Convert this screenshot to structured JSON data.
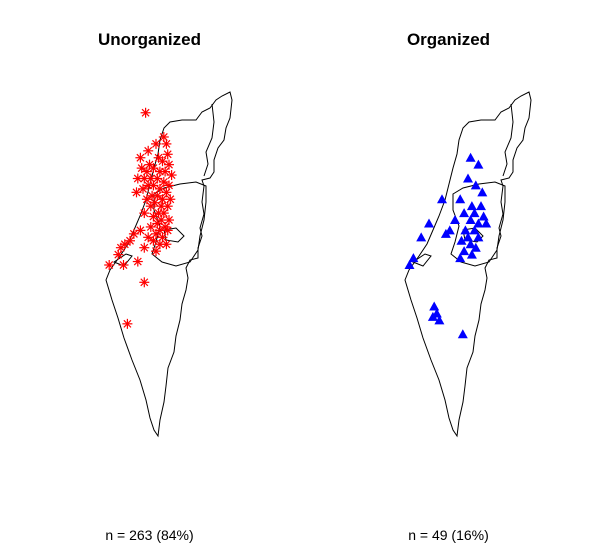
{
  "panels": [
    {
      "title": "Unorganized",
      "count_label": "n = 263 (84%)",
      "marker": "asterisk",
      "color": "#ff0000",
      "points": [
        [
          0.32,
          0.06
        ],
        [
          0.46,
          0.13
        ],
        [
          0.48,
          0.15
        ],
        [
          0.4,
          0.15
        ],
        [
          0.34,
          0.17
        ],
        [
          0.49,
          0.18
        ],
        [
          0.28,
          0.19
        ],
        [
          0.35,
          0.21
        ],
        [
          0.42,
          0.19
        ],
        [
          0.45,
          0.2
        ],
        [
          0.5,
          0.21
        ],
        [
          0.29,
          0.22
        ],
        [
          0.33,
          0.23
        ],
        [
          0.38,
          0.22
        ],
        [
          0.43,
          0.23
        ],
        [
          0.47,
          0.23
        ],
        [
          0.52,
          0.24
        ],
        [
          0.26,
          0.25
        ],
        [
          0.31,
          0.25
        ],
        [
          0.36,
          0.25
        ],
        [
          0.41,
          0.25
        ],
        [
          0.46,
          0.26
        ],
        [
          0.5,
          0.27
        ],
        [
          0.34,
          0.27
        ],
        [
          0.38,
          0.27
        ],
        [
          0.43,
          0.28
        ],
        [
          0.48,
          0.29
        ],
        [
          0.3,
          0.28
        ],
        [
          0.25,
          0.29
        ],
        [
          0.37,
          0.3
        ],
        [
          0.41,
          0.3
        ],
        [
          0.45,
          0.31
        ],
        [
          0.51,
          0.31
        ],
        [
          0.33,
          0.31
        ],
        [
          0.39,
          0.32
        ],
        [
          0.44,
          0.33
        ],
        [
          0.49,
          0.33
        ],
        [
          0.36,
          0.33
        ],
        [
          0.42,
          0.35
        ],
        [
          0.46,
          0.35
        ],
        [
          0.31,
          0.35
        ],
        [
          0.38,
          0.36
        ],
        [
          0.44,
          0.37
        ],
        [
          0.5,
          0.37
        ],
        [
          0.41,
          0.38
        ],
        [
          0.47,
          0.39
        ],
        [
          0.36,
          0.39
        ],
        [
          0.43,
          0.4
        ],
        [
          0.49,
          0.4
        ],
        [
          0.23,
          0.41
        ],
        [
          0.28,
          0.4
        ],
        [
          0.4,
          0.41
        ],
        [
          0.45,
          0.42
        ],
        [
          0.34,
          0.42
        ],
        [
          0.2,
          0.43
        ],
        [
          0.38,
          0.43
        ],
        [
          0.43,
          0.44
        ],
        [
          0.16,
          0.44
        ],
        [
          0.48,
          0.44
        ],
        [
          0.13,
          0.45
        ],
        [
          0.11,
          0.47
        ],
        [
          0.4,
          0.46
        ],
        [
          0.31,
          0.45
        ],
        [
          0.04,
          0.5
        ],
        [
          0.15,
          0.5
        ],
        [
          0.26,
          0.49
        ],
        [
          0.31,
          0.55
        ],
        [
          0.18,
          0.67
        ]
      ]
    },
    {
      "title": "Organized",
      "count_label": "n = 49 (16%)",
      "marker": "triangle",
      "color": "#0000ff",
      "points": [
        [
          0.52,
          0.19
        ],
        [
          0.58,
          0.21
        ],
        [
          0.5,
          0.25
        ],
        [
          0.56,
          0.27
        ],
        [
          0.61,
          0.29
        ],
        [
          0.3,
          0.31
        ],
        [
          0.44,
          0.31
        ],
        [
          0.53,
          0.33
        ],
        [
          0.6,
          0.33
        ],
        [
          0.47,
          0.35
        ],
        [
          0.55,
          0.35
        ],
        [
          0.62,
          0.36
        ],
        [
          0.4,
          0.37
        ],
        [
          0.52,
          0.37
        ],
        [
          0.58,
          0.38
        ],
        [
          0.64,
          0.38
        ],
        [
          0.2,
          0.38
        ],
        [
          0.36,
          0.4
        ],
        [
          0.48,
          0.4
        ],
        [
          0.55,
          0.4
        ],
        [
          0.14,
          0.42
        ],
        [
          0.33,
          0.41
        ],
        [
          0.5,
          0.42
        ],
        [
          0.58,
          0.42
        ],
        [
          0.45,
          0.43
        ],
        [
          0.52,
          0.44
        ],
        [
          0.56,
          0.45
        ],
        [
          0.47,
          0.46
        ],
        [
          0.53,
          0.47
        ],
        [
          0.44,
          0.48
        ],
        [
          0.08,
          0.48
        ],
        [
          0.05,
          0.5
        ],
        [
          0.24,
          0.62
        ],
        [
          0.26,
          0.64
        ],
        [
          0.23,
          0.65
        ],
        [
          0.28,
          0.66
        ],
        [
          0.46,
          0.7
        ]
      ]
    }
  ]
}
